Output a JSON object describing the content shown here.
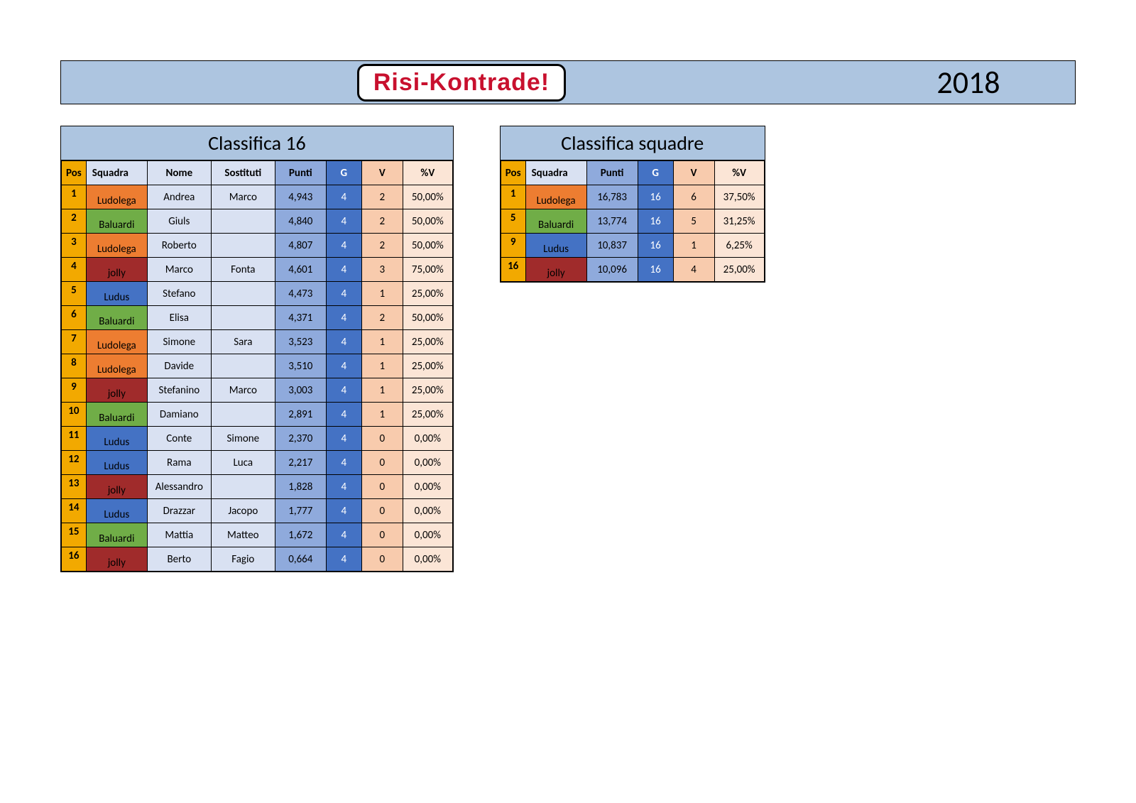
{
  "colors": {
    "header_bg": "#adc5e0",
    "year_bg": "#adc5e0",
    "logo_text": "#c8102e",
    "table_title_bg": "#adc5e0",
    "th_pos": "#f2a900",
    "th_text": "#d9e1f2",
    "th_punti": "#8faadc",
    "th_g": "#4472c4",
    "th_v": "#f8cbad",
    "th_pv": "#fbe5d6",
    "pos_cell": "#f2a900",
    "nome_bg": "#d9e1f2",
    "sost_bg": "#d9e1f2",
    "punti_bg": "#8faadc",
    "g_bg": "#4472c4",
    "v_bg": "#f8cbad",
    "pv_bg": "#fbe5d6",
    "squad_Ludolega": "#ed7d31",
    "squad_Baluardi": "#70ad47",
    "squad_jolly": "#a02b2b",
    "squad_Ludus": "#4472c4",
    "g_text": "#ffffff"
  },
  "header": {
    "logo_text": "Risi-Kontrade!",
    "year": "2018"
  },
  "table1": {
    "title": "Classifica 16",
    "columns": [
      "Pos",
      "Squadra",
      "Nome",
      "Sostituti",
      "Punti",
      "G",
      "V",
      "%V"
    ],
    "rows": [
      {
        "pos": "1",
        "squadra": "Ludolega",
        "nome": "Andrea",
        "sost": "Marco",
        "punti": "4,943",
        "g": "4",
        "v": "2",
        "pv": "50,00%"
      },
      {
        "pos": "2",
        "squadra": "Baluardi",
        "nome": "Giuls",
        "sost": "",
        "punti": "4,840",
        "g": "4",
        "v": "2",
        "pv": "50,00%"
      },
      {
        "pos": "3",
        "squadra": "Ludolega",
        "nome": "Roberto",
        "sost": "",
        "punti": "4,807",
        "g": "4",
        "v": "2",
        "pv": "50,00%"
      },
      {
        "pos": "4",
        "squadra": "jolly",
        "nome": "Marco",
        "sost": "Fonta",
        "punti": "4,601",
        "g": "4",
        "v": "3",
        "pv": "75,00%"
      },
      {
        "pos": "5",
        "squadra": "Ludus",
        "nome": "Stefano",
        "sost": "",
        "punti": "4,473",
        "g": "4",
        "v": "1",
        "pv": "25,00%"
      },
      {
        "pos": "6",
        "squadra": "Baluardi",
        "nome": "Elisa",
        "sost": "",
        "punti": "4,371",
        "g": "4",
        "v": "2",
        "pv": "50,00%"
      },
      {
        "pos": "7",
        "squadra": "Ludolega",
        "nome": "Simone",
        "sost": "Sara",
        "punti": "3,523",
        "g": "4",
        "v": "1",
        "pv": "25,00%"
      },
      {
        "pos": "8",
        "squadra": "Ludolega",
        "nome": "Davide",
        "sost": "",
        "punti": "3,510",
        "g": "4",
        "v": "1",
        "pv": "25,00%"
      },
      {
        "pos": "9",
        "squadra": "jolly",
        "nome": "Stefanino",
        "sost": "Marco",
        "punti": "3,003",
        "g": "4",
        "v": "1",
        "pv": "25,00%"
      },
      {
        "pos": "10",
        "squadra": "Baluardi",
        "nome": "Damiano",
        "sost": "",
        "punti": "2,891",
        "g": "4",
        "v": "1",
        "pv": "25,00%"
      },
      {
        "pos": "11",
        "squadra": "Ludus",
        "nome": "Conte",
        "sost": "Simone",
        "punti": "2,370",
        "g": "4",
        "v": "0",
        "pv": "0,00%"
      },
      {
        "pos": "12",
        "squadra": "Ludus",
        "nome": "Rama",
        "sost": "Luca",
        "punti": "2,217",
        "g": "4",
        "v": "0",
        "pv": "0,00%"
      },
      {
        "pos": "13",
        "squadra": "jolly",
        "nome": "Alessandro",
        "sost": "",
        "punti": "1,828",
        "g": "4",
        "v": "0",
        "pv": "0,00%"
      },
      {
        "pos": "14",
        "squadra": "Ludus",
        "nome": "Drazzar",
        "sost": "Jacopo",
        "punti": "1,777",
        "g": "4",
        "v": "0",
        "pv": "0,00%"
      },
      {
        "pos": "15",
        "squadra": "Baluardi",
        "nome": "Mattia",
        "sost": "Matteo",
        "punti": "1,672",
        "g": "4",
        "v": "0",
        "pv": "0,00%"
      },
      {
        "pos": "16",
        "squadra": "jolly",
        "nome": "Berto",
        "sost": "Fagio",
        "punti": "0,664",
        "g": "4",
        "v": "0",
        "pv": "0,00%"
      }
    ]
  },
  "table2": {
    "title": "Classifica squadre",
    "columns": [
      "Pos",
      "Squadra",
      "Punti",
      "G",
      "V",
      "%V"
    ],
    "rows": [
      {
        "pos": "1",
        "squadra": "Ludolega",
        "punti": "16,783",
        "g": "16",
        "v": "6",
        "pv": "37,50%"
      },
      {
        "pos": "5",
        "squadra": "Baluardi",
        "punti": "13,774",
        "g": "16",
        "v": "5",
        "pv": "31,25%"
      },
      {
        "pos": "9",
        "squadra": "Ludus",
        "punti": "10,837",
        "g": "16",
        "v": "1",
        "pv": "6,25%"
      },
      {
        "pos": "16",
        "squadra": "jolly",
        "punti": "10,096",
        "g": "16",
        "v": "4",
        "pv": "25,00%"
      }
    ]
  }
}
